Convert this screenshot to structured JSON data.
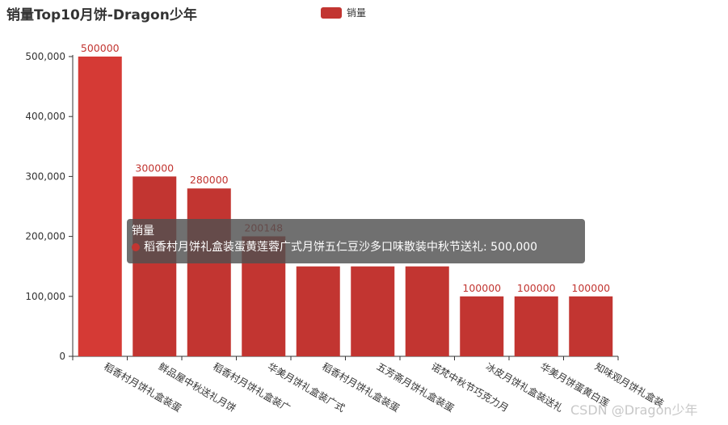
{
  "chart_data": {
    "type": "bar",
    "title": "销量Top10月饼-Dragon少年",
    "legend": {
      "position": "top-center",
      "entries": [
        "销量"
      ]
    },
    "series": [
      {
        "name": "销量",
        "values": [
          500000,
          300000,
          280000,
          200148,
          150000,
          150000,
          150000,
          100000,
          100000,
          100000
        ],
        "data_labels": [
          "500000",
          "300000",
          "280000",
          "200148",
          "",
          "",
          "",
          "100000",
          "100000",
          "100000"
        ]
      }
    ],
    "categories": [
      "稻香村月饼礼盒装蛋",
      "鲜品屋中秋送礼月饼",
      "稻香村月饼礼盒装广",
      "华美月饼礼盒装广式",
      "稻香村月饼礼盒装蛋",
      "五芳斋月饼礼盒装蛋",
      "诺梵中秋节巧克力月",
      "冰皮月饼礼盒装送礼",
      "华美月饼蛋黄白莲",
      "知味观月饼礼盒装"
    ],
    "ylim": [
      0,
      500000
    ],
    "yticks": [
      0,
      100000,
      200000,
      300000,
      400000,
      500000
    ],
    "ytick_labels": [
      "0",
      "100,000",
      "200,000",
      "300,000",
      "400,000",
      "500,000"
    ],
    "grid": false,
    "colors": {
      "bar": "#c23531",
      "bar_highlight": "#d53a35",
      "label": "#c23531",
      "axis": "#333333"
    }
  },
  "tooltip": {
    "title": "销量",
    "text": "稻香村月饼礼盒装蛋黄莲蓉广式月饼五仁豆沙多口味散装中秋节送礼: 500,000"
  },
  "watermark": "CSDN @Dragon少年"
}
